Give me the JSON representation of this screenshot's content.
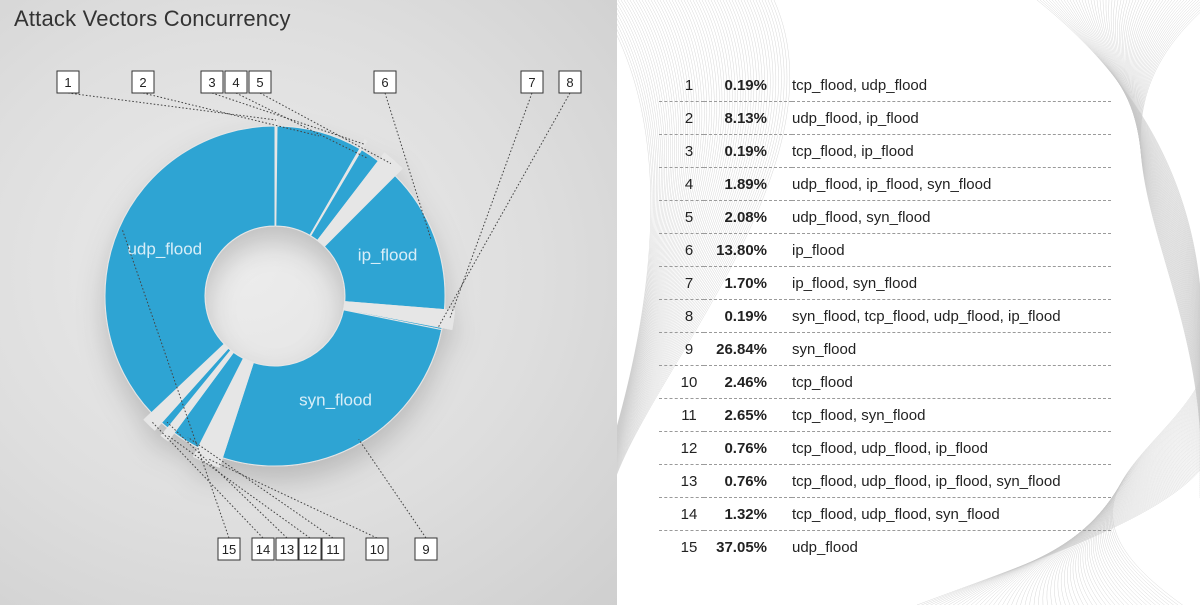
{
  "title": "Attack Vectors Concurrency",
  "colors": {
    "slice": "#2fa4d3",
    "gap": "#e6e6e6",
    "label": "#d8eef8"
  },
  "chart_data": {
    "type": "pie",
    "title": "Attack Vectors Concurrency",
    "donut": true,
    "items": [
      {
        "index": "1",
        "percent": 0.19,
        "percent_label": "0.19%",
        "vectors": "tcp_flood, udp_flood",
        "highlight": true
      },
      {
        "index": "2",
        "percent": 8.13,
        "percent_label": "8.13%",
        "vectors": "udp_flood, ip_flood",
        "highlight": false
      },
      {
        "index": "3",
        "percent": 0.19,
        "percent_label": "0.19%",
        "vectors": "tcp_flood, ip_flood",
        "highlight": true
      },
      {
        "index": "4",
        "percent": 1.89,
        "percent_label": "1.89%",
        "vectors": "udp_flood, ip_flood, syn_flood",
        "highlight": false
      },
      {
        "index": "5",
        "percent": 2.08,
        "percent_label": "2.08%",
        "vectors": "udp_flood, syn_flood",
        "highlight": true
      },
      {
        "index": "6",
        "percent": 13.8,
        "percent_label": "13.80%",
        "vectors": "ip_flood",
        "highlight": false,
        "slice_label": "ip_flood"
      },
      {
        "index": "7",
        "percent": 1.7,
        "percent_label": "1.70%",
        "vectors": "ip_flood, syn_flood",
        "highlight": true
      },
      {
        "index": "8",
        "percent": 0.19,
        "percent_label": "0.19%",
        "vectors": "syn_flood, tcp_flood, udp_flood, ip_flood",
        "highlight": false
      },
      {
        "index": "9",
        "percent": 26.84,
        "percent_label": "26.84%",
        "vectors": "syn_flood",
        "highlight": false,
        "slice_label": "syn_flood"
      },
      {
        "index": "10",
        "percent": 2.46,
        "percent_label": "2.46%",
        "vectors": "tcp_flood",
        "highlight": true
      },
      {
        "index": "11",
        "percent": 2.65,
        "percent_label": "2.65%",
        "vectors": "tcp_flood, syn_flood",
        "highlight": false
      },
      {
        "index": "12",
        "percent": 0.76,
        "percent_label": "0.76%",
        "vectors": "tcp_flood, udp_flood, ip_flood",
        "highlight": true
      },
      {
        "index": "13",
        "percent": 0.76,
        "percent_label": "0.76%",
        "vectors": "tcp_flood, udp_flood, ip_flood, syn_flood",
        "highlight": false
      },
      {
        "index": "14",
        "percent": 1.32,
        "percent_label": "1.32%",
        "vectors": "tcp_flood, udp_flood, syn_flood",
        "highlight": true
      },
      {
        "index": "15",
        "percent": 37.05,
        "percent_label": "37.05%",
        "vectors": "udp_flood",
        "highlight": false,
        "slice_label": "udp_flood"
      }
    ]
  }
}
